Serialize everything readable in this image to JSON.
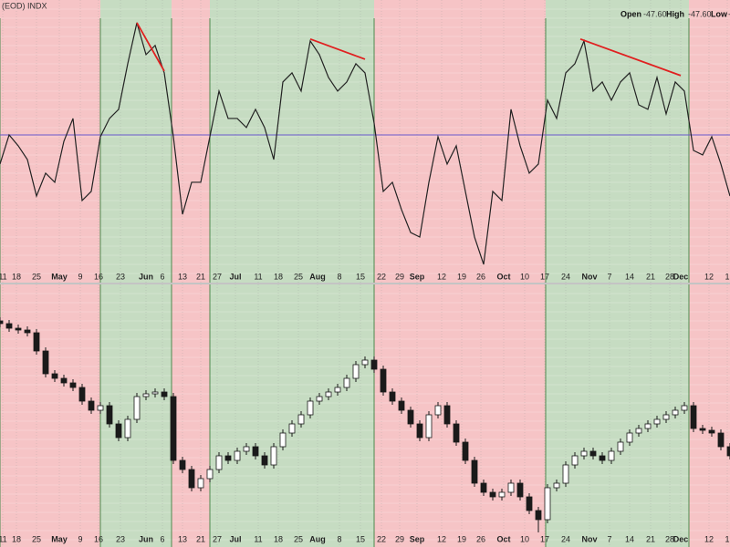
{
  "header": {
    "source": "(EOD) INDX",
    "quote": [
      {
        "label": "Open",
        "value": "-47.60"
      },
      {
        "label": "High",
        "value": "-47.60"
      },
      {
        "label": "Low",
        "value": "-"
      }
    ]
  },
  "chart_data": [
    {
      "type": "line",
      "color": "#222222",
      "xlim": [
        0,
        80
      ],
      "ylim": [
        -115,
        105
      ],
      "midline": 0,
      "midline_color": "#6a5acd",
      "grid": true,
      "regions": [
        {
          "start": 0,
          "end": 11,
          "color": "#f6c4c6"
        },
        {
          "start": 11,
          "end": 18.8,
          "color": "#c6dcc2"
        },
        {
          "start": 18.8,
          "end": 23,
          "color": "#f6c4c6"
        },
        {
          "start": 23,
          "end": 41,
          "color": "#c6dcc2"
        },
        {
          "start": 41,
          "end": 59.8,
          "color": "#f6c4c6"
        },
        {
          "start": 59.8,
          "end": 75.5,
          "color": "#c6dcc2"
        },
        {
          "start": 75.5,
          "end": 80,
          "color": "#f6c4c6"
        }
      ],
      "trendlines": [
        {
          "x": [
            15,
            18
          ],
          "y": [
            87.3,
            49.7
          ],
          "color": "#e02020"
        },
        {
          "x": [
            34,
            40
          ],
          "y": [
            74.6,
            58.9
          ],
          "color": "#e02020"
        },
        {
          "x": [
            63.6,
            74.6
          ],
          "y": [
            74.6,
            46.2
          ],
          "color": "#e02020"
        }
      ],
      "xticks": [
        {
          "value": 0.3,
          "label": "11"
        },
        {
          "value": 1.8,
          "label": "18"
        },
        {
          "value": 4,
          "label": "25"
        },
        {
          "value": 6.5,
          "label": "May"
        },
        {
          "value": 8.8,
          "label": "9"
        },
        {
          "value": 10.8,
          "label": "16"
        },
        {
          "value": 13.2,
          "label": "23"
        },
        {
          "value": 16,
          "label": "Jun"
        },
        {
          "value": 17.8,
          "label": "6"
        },
        {
          "value": 20,
          "label": "13"
        },
        {
          "value": 22,
          "label": "21"
        },
        {
          "value": 23.8,
          "label": "27"
        },
        {
          "value": 25.8,
          "label": "Jul"
        },
        {
          "value": 28.3,
          "label": "11"
        },
        {
          "value": 30.5,
          "label": "18"
        },
        {
          "value": 32.7,
          "label": "25"
        },
        {
          "value": 34.8,
          "label": "Aug"
        },
        {
          "value": 37.2,
          "label": "8"
        },
        {
          "value": 39.5,
          "label": "15"
        },
        {
          "value": 41.8,
          "label": "22"
        },
        {
          "value": 43.8,
          "label": "29"
        },
        {
          "value": 45.7,
          "label": "Sep"
        },
        {
          "value": 48.4,
          "label": "12"
        },
        {
          "value": 50.6,
          "label": "19"
        },
        {
          "value": 52.7,
          "label": "26"
        },
        {
          "value": 55.2,
          "label": "Oct"
        },
        {
          "value": 57.5,
          "label": "10"
        },
        {
          "value": 59.7,
          "label": "17"
        },
        {
          "value": 62,
          "label": "24"
        },
        {
          "value": 64.6,
          "label": "Nov"
        },
        {
          "value": 66.8,
          "label": "7"
        },
        {
          "value": 69,
          "label": "14"
        },
        {
          "value": 71.3,
          "label": "21"
        },
        {
          "value": 73.4,
          "label": "28"
        },
        {
          "value": 74.6,
          "label": "Dec"
        },
        {
          "value": 77.7,
          "label": "12"
        },
        {
          "value": 79.7,
          "label": "1"
        }
      ],
      "values": [
        -22.7,
        0,
        -8.5,
        -19.2,
        -47.6,
        -29.8,
        -36.9,
        -5.0,
        12.8,
        -51.1,
        -44.0,
        -1.4,
        12.8,
        19.9,
        55.4,
        87.3,
        62.5,
        69.6,
        48.3,
        -1.4,
        -61.8,
        -36.9,
        -36.9,
        -1.4,
        34.1,
        12.8,
        12.8,
        5.7,
        19.9,
        5.7,
        -19.2,
        41.2,
        48.3,
        34.1,
        73.1,
        62.5,
        44.7,
        34.1,
        41.2,
        55.4,
        48.3,
        9.2,
        -44.0,
        -36.9,
        -58.2,
        -76.0,
        -79.5,
        -36.9,
        -1.4,
        -22.7,
        -8.5,
        -44.0,
        -79.5,
        -100.8,
        -44.0,
        -51.1,
        19.9,
        -8.5,
        -29.8,
        -22.7,
        27.0,
        12.8,
        48.3,
        55.4,
        73.1,
        34.1,
        41.2,
        27.0,
        41.2,
        48.3,
        23.4,
        19.9,
        44.7,
        16.3,
        41.2,
        34.1,
        -12.1,
        -15.6,
        -1.4,
        -22.7,
        -47.6
      ]
    },
    {
      "type": "candlestick",
      "up_color": "#ffffff",
      "down_color": "#1a1a1a",
      "xlim": [
        0,
        80
      ],
      "ylim": [
        0,
        288
      ],
      "grid": true,
      "regions": [
        {
          "start": 0,
          "end": 11,
          "color": "#f6c4c6"
        },
        {
          "start": 11,
          "end": 18.8,
          "color": "#c6dcc2"
        },
        {
          "start": 18.8,
          "end": 23,
          "color": "#f6c4c6"
        },
        {
          "start": 23,
          "end": 41,
          "color": "#c6dcc2"
        },
        {
          "start": 41,
          "end": 59.8,
          "color": "#f6c4c6"
        },
        {
          "start": 59.8,
          "end": 75.5,
          "color": "#c6dcc2"
        },
        {
          "start": 75.5,
          "end": 80,
          "color": "#f6c4c6"
        }
      ],
      "xticks": [
        {
          "value": 0.3,
          "label": "11"
        },
        {
          "value": 1.8,
          "label": "18"
        },
        {
          "value": 4,
          "label": "25"
        },
        {
          "value": 6.5,
          "label": "May"
        },
        {
          "value": 8.8,
          "label": "9"
        },
        {
          "value": 10.8,
          "label": "16"
        },
        {
          "value": 13.2,
          "label": "23"
        },
        {
          "value": 16,
          "label": "Jun"
        },
        {
          "value": 17.8,
          "label": "6"
        },
        {
          "value": 20,
          "label": "13"
        },
        {
          "value": 22,
          "label": "21"
        },
        {
          "value": 23.8,
          "label": "27"
        },
        {
          "value": 25.8,
          "label": "Jul"
        },
        {
          "value": 28.3,
          "label": "11"
        },
        {
          "value": 30.5,
          "label": "18"
        },
        {
          "value": 32.7,
          "label": "25"
        },
        {
          "value": 34.8,
          "label": "Aug"
        },
        {
          "value": 37.2,
          "label": "8"
        },
        {
          "value": 39.5,
          "label": "15"
        },
        {
          "value": 41.8,
          "label": "22"
        },
        {
          "value": 43.8,
          "label": "29"
        },
        {
          "value": 45.7,
          "label": "Sep"
        },
        {
          "value": 48.4,
          "label": "12"
        },
        {
          "value": 50.6,
          "label": "19"
        },
        {
          "value": 52.7,
          "label": "26"
        },
        {
          "value": 55.2,
          "label": "Oct"
        },
        {
          "value": 57.5,
          "label": "10"
        },
        {
          "value": 59.7,
          "label": "17"
        },
        {
          "value": 62,
          "label": "24"
        },
        {
          "value": 64.6,
          "label": "Nov"
        },
        {
          "value": 66.8,
          "label": "7"
        },
        {
          "value": 69,
          "label": "14"
        },
        {
          "value": 71.3,
          "label": "21"
        },
        {
          "value": 73.4,
          "label": "28"
        },
        {
          "value": 74.6,
          "label": "Dec"
        },
        {
          "value": 77.7,
          "label": "12"
        },
        {
          "value": 79.7,
          "label": "1"
        }
      ],
      "candles": [
        [
          248,
          252,
          241,
          245
        ],
        [
          245,
          249,
          236,
          240
        ],
        [
          240,
          244,
          234,
          238
        ],
        [
          238,
          242,
          231,
          235
        ],
        [
          235,
          239,
          211,
          215
        ],
        [
          215,
          219,
          186,
          190
        ],
        [
          190,
          194,
          181,
          185
        ],
        [
          185,
          189,
          176,
          180
        ],
        [
          180,
          184,
          171,
          175
        ],
        [
          175,
          179,
          156,
          160
        ],
        [
          160,
          164,
          146,
          150
        ],
        [
          150,
          159,
          146,
          155
        ],
        [
          155,
          159,
          131,
          135
        ],
        [
          135,
          139,
          116,
          120
        ],
        [
          120,
          144,
          116,
          140
        ],
        [
          140,
          169,
          136,
          165
        ],
        [
          165,
          172,
          161,
          168
        ],
        [
          168,
          174,
          164,
          170
        ],
        [
          170,
          174,
          161,
          165
        ],
        [
          165,
          169,
          91,
          95
        ],
        [
          95,
          99,
          81,
          85
        ],
        [
          85,
          89,
          61,
          65
        ],
        [
          65,
          79,
          61,
          75
        ],
        [
          75,
          89,
          71,
          85
        ],
        [
          85,
          104,
          81,
          100
        ],
        [
          100,
          104,
          91,
          95
        ],
        [
          95,
          109,
          91,
          105
        ],
        [
          105,
          114,
          101,
          110
        ],
        [
          110,
          114,
          96,
          100
        ],
        [
          100,
          104,
          86,
          90
        ],
        [
          90,
          114,
          86,
          110
        ],
        [
          110,
          129,
          106,
          125
        ],
        [
          125,
          139,
          121,
          135
        ],
        [
          135,
          149,
          131,
          145
        ],
        [
          145,
          164,
          141,
          160
        ],
        [
          160,
          169,
          156,
          165
        ],
        [
          165,
          174,
          161,
          170
        ],
        [
          170,
          179,
          166,
          175
        ],
        [
          175,
          189,
          171,
          185
        ],
        [
          185,
          204,
          181,
          200
        ],
        [
          200,
          209,
          196,
          205
        ],
        [
          205,
          209,
          191,
          195
        ],
        [
          195,
          199,
          166,
          170
        ],
        [
          170,
          174,
          156,
          160
        ],
        [
          160,
          164,
          146,
          150
        ],
        [
          150,
          154,
          131,
          135
        ],
        [
          135,
          139,
          116,
          120
        ],
        [
          120,
          149,
          116,
          145
        ],
        [
          145,
          159,
          141,
          155
        ],
        [
          155,
          159,
          131,
          135
        ],
        [
          135,
          139,
          111,
          115
        ],
        [
          115,
          119,
          91,
          95
        ],
        [
          95,
          99,
          66,
          70
        ],
        [
          70,
          74,
          56,
          60
        ],
        [
          60,
          64,
          51,
          55
        ],
        [
          55,
          64,
          51,
          60
        ],
        [
          60,
          74,
          56,
          70
        ],
        [
          70,
          74,
          51,
          55
        ],
        [
          55,
          59,
          36,
          40
        ],
        [
          40,
          44,
          16,
          30
        ],
        [
          30,
          69,
          26,
          65
        ],
        [
          65,
          74,
          61,
          70
        ],
        [
          70,
          94,
          66,
          90
        ],
        [
          90,
          104,
          86,
          100
        ],
        [
          100,
          109,
          96,
          105
        ],
        [
          105,
          109,
          96,
          100
        ],
        [
          100,
          104,
          91,
          95
        ],
        [
          95,
          109,
          91,
          105
        ],
        [
          105,
          119,
          101,
          115
        ],
        [
          115,
          129,
          111,
          125
        ],
        [
          125,
          134,
          121,
          130
        ],
        [
          130,
          139,
          126,
          135
        ],
        [
          135,
          144,
          131,
          140
        ],
        [
          140,
          149,
          136,
          145
        ],
        [
          145,
          154,
          141,
          150
        ],
        [
          150,
          159,
          146,
          155
        ],
        [
          155,
          159,
          126,
          130
        ],
        [
          130,
          134,
          124,
          128
        ],
        [
          128,
          132,
          121,
          125
        ],
        [
          125,
          129,
          106,
          110
        ],
        [
          110,
          114,
          96,
          100
        ]
      ]
    }
  ]
}
